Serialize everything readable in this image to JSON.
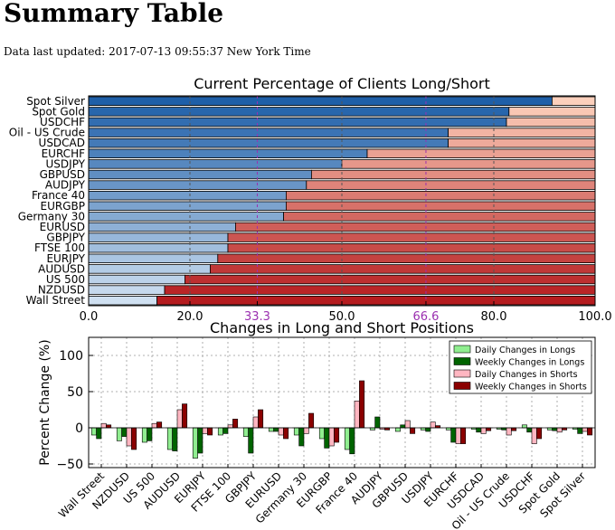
{
  "page": {
    "title": "Summary Table",
    "updated_label": "Data last updated:",
    "updated_value": "2017-07-13 09:55:37 New York Time"
  },
  "chart_data": [
    {
      "type": "bar",
      "orientation": "horizontal-stacked",
      "title": "Current Percentage of Clients Long/Short",
      "categories": [
        "Spot Silver",
        "Spot Gold",
        "USDCHF",
        "Oil - US Crude",
        "USDCAD",
        "EURCHF",
        "USDJPY",
        "GBPUSD",
        "AUDJPY",
        "France 40",
        "EURGBP",
        "Germany 30",
        "EURUSD",
        "GBPJPY",
        "FTSE 100",
        "EURJPY",
        "AUDUSD",
        "US 500",
        "NZDUSD",
        "Wall Street"
      ],
      "long_values": [
        91.5,
        83,
        82.5,
        71,
        71,
        55,
        50,
        44,
        43,
        39,
        39,
        38.5,
        29,
        27.5,
        27.5,
        25.5,
        24,
        19,
        15,
        13.5
      ],
      "xlim": [
        0,
        100
      ],
      "xticks": [
        "0.0",
        "20.0",
        "33.3",
        "50.0",
        "66.6",
        "80.0",
        "100.0"
      ],
      "reference_lines": [
        33.3,
        66.6
      ],
      "grid": true
    },
    {
      "type": "bar",
      "title": "Changes in Long and Short Positions",
      "ylabel": "Percent Change (%)",
      "ylim": [
        -55,
        125
      ],
      "yticks": [
        "100",
        "50",
        "0",
        "−50"
      ],
      "categories": [
        "Wall Street",
        "NZDUSD",
        "US 500",
        "AUDUSD",
        "EURJPY",
        "FTSE 100",
        "GBPJPY",
        "EURUSD",
        "Germany 30",
        "EURGBP",
        "France 40",
        "AUDJPY",
        "GBPUSD",
        "USDJPY",
        "EURCHF",
        "USDCAD",
        "Oil - US Crude",
        "USDCHF",
        "Spot Gold",
        "Spot Silver"
      ],
      "series": [
        {
          "name": "Daily Changes in Longs",
          "values": [
            -10,
            -18,
            -20,
            -30,
            -42,
            -10,
            -12,
            -5,
            -10,
            -15,
            -30,
            -3,
            -5,
            -3,
            -3,
            -2,
            -2,
            4,
            -3,
            -2
          ],
          "color": "#90ee90"
        },
        {
          "name": "Weekly Changes in Longs",
          "values": [
            -15,
            -12,
            -18,
            -32,
            -35,
            -8,
            -35,
            -5,
            -25,
            -28,
            -36,
            15,
            4,
            -5,
            -20,
            -6,
            -3,
            -6,
            -4,
            -8
          ],
          "color": "#006400"
        },
        {
          "name": "Daily Changes in Shorts",
          "values": [
            6,
            -25,
            6,
            25,
            -8,
            4,
            15,
            -10,
            -8,
            -25,
            37,
            -2,
            10,
            8,
            -22,
            -8,
            -10,
            -22,
            -6,
            -5
          ],
          "color": "#ffb6c1"
        },
        {
          "name": "Weekly Changes in Shorts",
          "values": [
            4,
            -30,
            8,
            33,
            -10,
            12,
            25,
            -15,
            20,
            -20,
            65,
            -3,
            -8,
            3,
            -22,
            -4,
            -4,
            -15,
            -3,
            -10
          ],
          "color": "#8b0000"
        }
      ],
      "legend": "top-right",
      "grid": true
    }
  ]
}
